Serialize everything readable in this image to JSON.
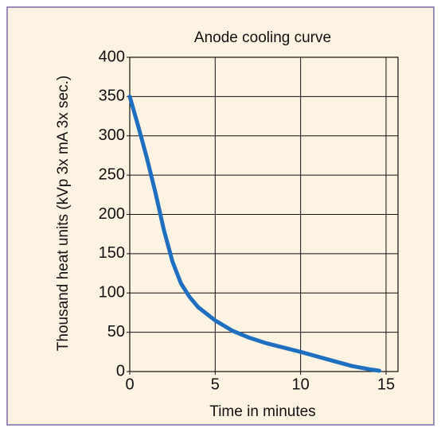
{
  "chart_data": {
    "type": "line",
    "title": "Anode cooling curve",
    "x_label": "Time in minutes",
    "y_label": "Thousand heat units (kVp 3x mA 3x sec.)",
    "x": [
      0,
      0.5,
      1,
      1.5,
      2,
      2.5,
      3,
      3.5,
      4,
      5,
      6,
      7,
      8,
      10,
      12,
      13,
      14,
      14.6
    ],
    "series": [
      {
        "name": "Anode cooling",
        "color": "#1f6fc0",
        "values": [
          350,
          312,
          272,
          228,
          180,
          140,
          112,
          95,
          82,
          65,
          52,
          43,
          36,
          25,
          13,
          7,
          3,
          1
        ]
      }
    ],
    "xlim": [
      0,
      15.7
    ],
    "xticks": [
      0,
      5,
      10,
      15
    ],
    "ylim": [
      0,
      400
    ],
    "yticks": [
      0,
      50,
      100,
      150,
      200,
      250,
      300,
      350,
      400
    ],
    "grid": true
  }
}
